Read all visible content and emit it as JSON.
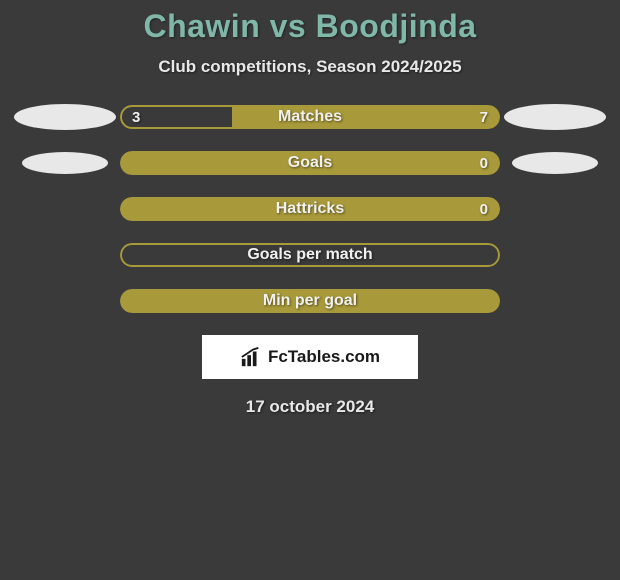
{
  "title": "Chawin vs Boodjinda",
  "subtitle": "Club competitions, Season 2024/2025",
  "date": "17 october 2024",
  "logo_text": "FcTables.com",
  "colors": {
    "background": "#3a3a3a",
    "title": "#7fb8a8",
    "text": "#e8e8e8",
    "bar_primary": "#a89a3a",
    "bar_secondary": "#3a3a3a",
    "bar_border": "#a89a3a",
    "ellipse": "#e8e8e8",
    "logo_bg": "#ffffff"
  },
  "rows": [
    {
      "label": "Matches",
      "left_value": "3",
      "right_value": "7",
      "left_fill_pct": 30,
      "bg_color": "#a89a3a",
      "left_fill_color": "#3a3a3a",
      "has_border": false,
      "show_values": true,
      "left_shape": "big",
      "right_shape": "big"
    },
    {
      "label": "Goals",
      "left_value": "",
      "right_value": "0",
      "left_fill_pct": 0,
      "bg_color": "#a89a3a",
      "left_fill_color": "#3a3a3a",
      "has_border": false,
      "show_values": true,
      "left_shape": "med",
      "right_shape": "med"
    },
    {
      "label": "Hattricks",
      "left_value": "",
      "right_value": "0",
      "left_fill_pct": 0,
      "bg_color": "#a89a3a",
      "left_fill_color": "#3a3a3a",
      "has_border": false,
      "show_values": true,
      "left_shape": "",
      "right_shape": ""
    },
    {
      "label": "Goals per match",
      "left_value": "",
      "right_value": "",
      "left_fill_pct": 0,
      "bg_color": "transparent",
      "left_fill_color": "#3a3a3a",
      "has_border": true,
      "border_color": "#a89a3a",
      "show_values": false,
      "left_shape": "",
      "right_shape": ""
    },
    {
      "label": "Min per goal",
      "left_value": "",
      "right_value": "",
      "left_fill_pct": 0,
      "bg_color": "#a89a3a",
      "left_fill_color": "#3a3a3a",
      "has_border": false,
      "show_values": false,
      "left_shape": "",
      "right_shape": ""
    }
  ]
}
